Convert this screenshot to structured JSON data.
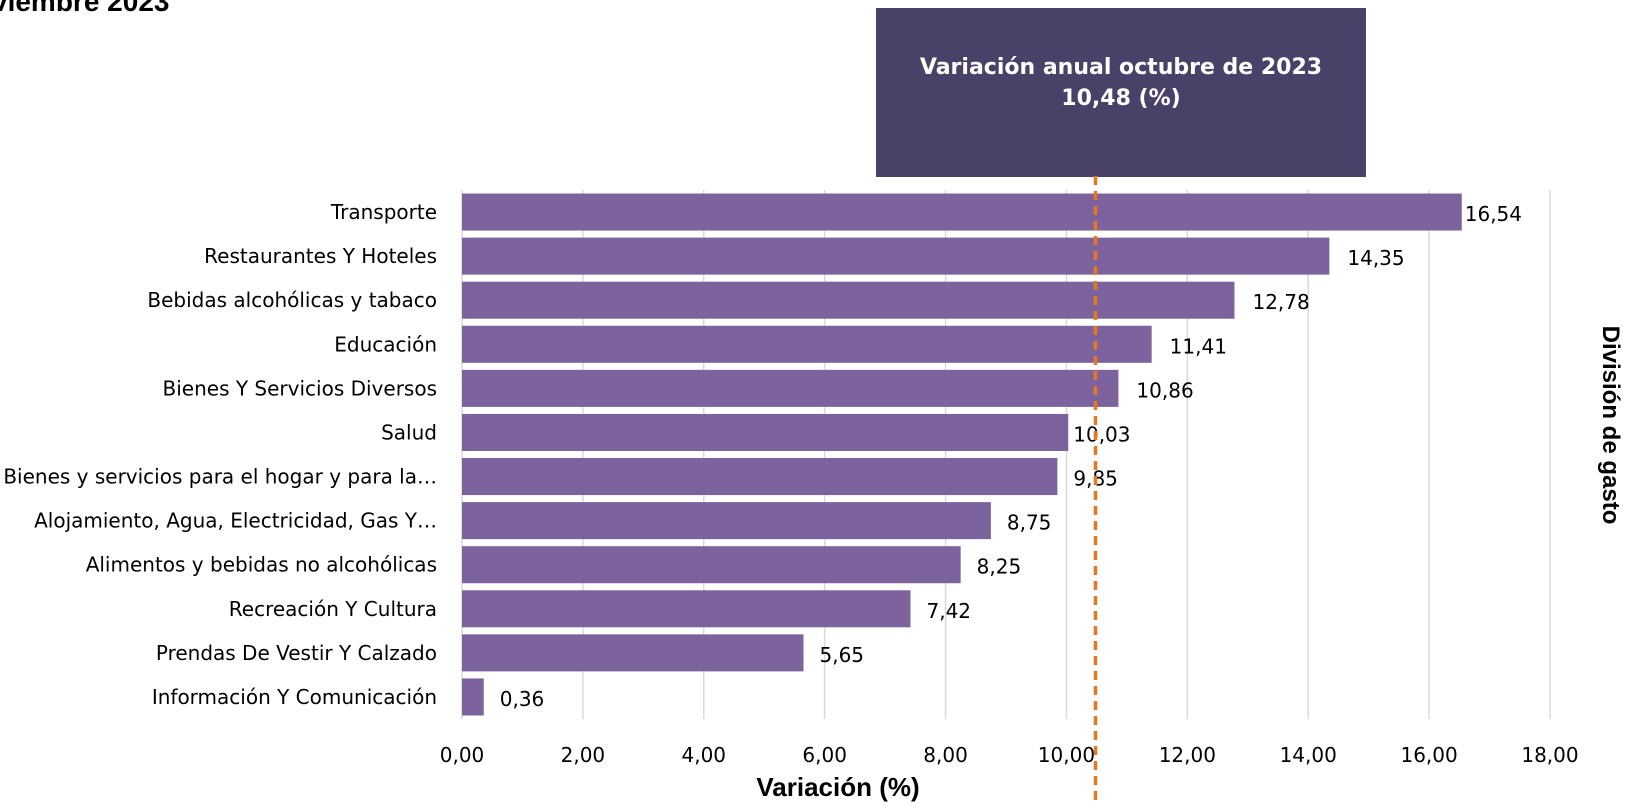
{
  "chart_data": {
    "type": "bar",
    "orientation": "horizontal",
    "title": "viembre 2023",
    "xlabel": "Variación (%)",
    "ylabel": "División de gasto",
    "categories": [
      "Transporte",
      "Restaurantes Y Hoteles",
      "Bebidas alcohólicas y tabaco",
      "Educación",
      "Bienes Y Servicios Diversos",
      "Salud",
      "Bienes y servicios para el hogar y para la…",
      "Alojamiento, Agua, Electricidad, Gas Y…",
      "Alimentos y bebidas no alcohólicas",
      "Recreación Y Cultura",
      "Prendas De Vestir Y Calzado",
      "Información Y Comunicación"
    ],
    "values": [
      16.54,
      14.35,
      12.78,
      11.41,
      10.86,
      10.03,
      9.85,
      8.75,
      8.25,
      7.42,
      5.65,
      0.36
    ],
    "value_labels": [
      "16,54",
      "14,35",
      "12,78",
      "11,41",
      "10,86",
      "10,03",
      "9,85",
      "8,75",
      "8,25",
      "7,42",
      "5,65",
      "0,36"
    ],
    "xlim": [
      0,
      18
    ],
    "ticks": [
      0,
      2,
      4,
      6,
      8,
      10,
      12,
      14,
      16,
      18
    ],
    "tick_labels": [
      "0,00",
      "2,00",
      "4,00",
      "6,00",
      "8,00",
      "10,00",
      "12,00",
      "14,00",
      "16,00",
      "18,00"
    ],
    "grid": true,
    "reference_line": {
      "value": 10.48,
      "label_line1": "Variación anual octubre de 2023",
      "label_line2": "10,48 (%)",
      "color": "#e87722"
    },
    "colors": {
      "bar": "#7c639e",
      "callout": "#4a4168",
      "grid": "#d9d9d9"
    }
  }
}
